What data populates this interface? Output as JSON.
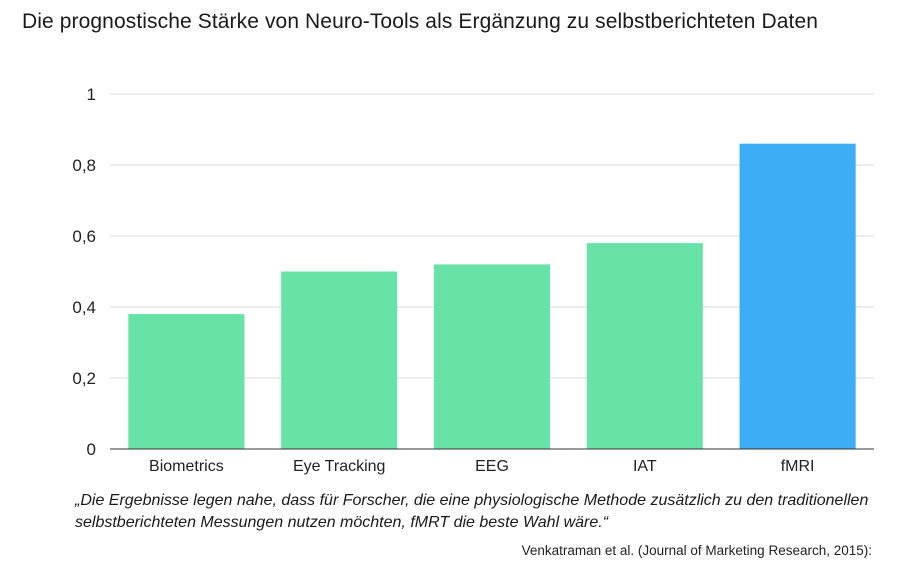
{
  "title": "Die prognostische Stärke von Neuro-Tools als Ergänzung zu selbstberichteten Daten",
  "quote": "„Die Ergebnisse legen nahe, dass für Forscher, die eine physiologische Methode zusätzlich zu den traditionellen selbstberichteten Messungen nutzen möchten, fMRT die beste Wahl wäre.“",
  "source": "Venkatraman et al. (Journal of Marketing Research, 2015):",
  "colors": {
    "default_bar": "#68e3a8",
    "highlight_bar": "#3daef5",
    "grid": "#d9d9d9",
    "axis": "#333333"
  },
  "chart_data": {
    "type": "bar",
    "title": "Die prognostische Stärke von Neuro-Tools als Ergänzung zu selbstberichteten Daten",
    "xlabel": "",
    "ylabel": "",
    "categories": [
      "Biometrics",
      "Eye Tracking",
      "EEG",
      "IAT",
      "fMRI"
    ],
    "values": [
      0.38,
      0.5,
      0.52,
      0.58,
      0.86
    ],
    "highlight": "fMRI",
    "ylim": [
      0,
      1
    ],
    "yticks": [
      0,
      0.2,
      0.4,
      0.6,
      0.8,
      1
    ],
    "ytick_labels": [
      "0",
      "0,2",
      "0,4",
      "0,6",
      "0,8",
      "1"
    ],
    "grid": true,
    "legend": "none"
  }
}
